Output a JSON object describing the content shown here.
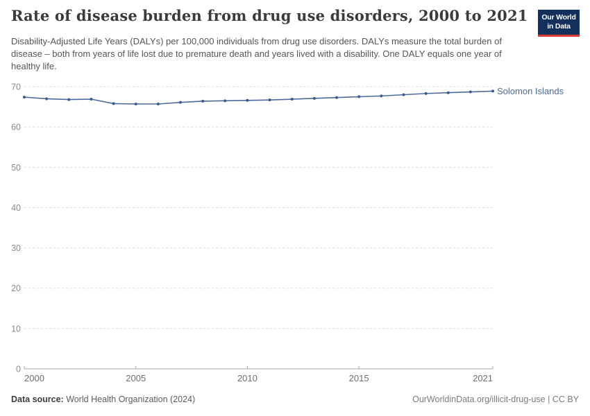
{
  "header": {
    "title": "Rate of disease burden from drug use disorders, 2000 to 2021",
    "subtitle": "Disability-Adjusted Life Years (DALYs) per 100,000 individuals from drug use disorders. DALYs measure the total burden of disease – both from years of life lost due to premature death and years lived with a disability. One DALY equals one year of healthy life.",
    "logo": {
      "line1": "Our World",
      "line2": "in Data",
      "bg_color": "#12305B",
      "accent_color": "#DC3A34"
    }
  },
  "chart_data": {
    "type": "line",
    "title": "Rate of disease burden from drug use disorders, 2000 to 2021",
    "xlabel": "",
    "ylabel": "",
    "xlim": [
      2000,
      2021
    ],
    "ylim": [
      0,
      70
    ],
    "x_ticks": [
      2000,
      2005,
      2010,
      2015,
      2021
    ],
    "y_ticks": [
      0,
      10,
      20,
      30,
      40,
      50,
      60,
      70
    ],
    "grid": "horizontal-dashed",
    "legend_position": "end-of-line-label",
    "series": [
      {
        "name": "Solomon Islands",
        "color": "#4C6A9C",
        "marker_color": "#3A5A94",
        "x": [
          2000,
          2001,
          2002,
          2003,
          2004,
          2005,
          2006,
          2007,
          2008,
          2009,
          2010,
          2011,
          2012,
          2013,
          2014,
          2015,
          2016,
          2017,
          2018,
          2019,
          2020,
          2021
        ],
        "values": [
          67.4,
          67.0,
          66.8,
          66.9,
          65.8,
          65.7,
          65.7,
          66.1,
          66.4,
          66.5,
          66.6,
          66.7,
          66.9,
          67.1,
          67.3,
          67.5,
          67.7,
          68.0,
          68.3,
          68.5,
          68.7,
          68.9
        ]
      }
    ],
    "colors": {
      "grid": "#DCDCDC",
      "axis": "#A6A6A6",
      "y_tick_text": "#8A8A8A",
      "x_tick_text": "#6E6E6E"
    }
  },
  "footer": {
    "source_label": "Data source:",
    "source_text": " World Health Organization (2024)",
    "credit": "OurWorldinData.org/illicit-drug-use | CC BY"
  }
}
